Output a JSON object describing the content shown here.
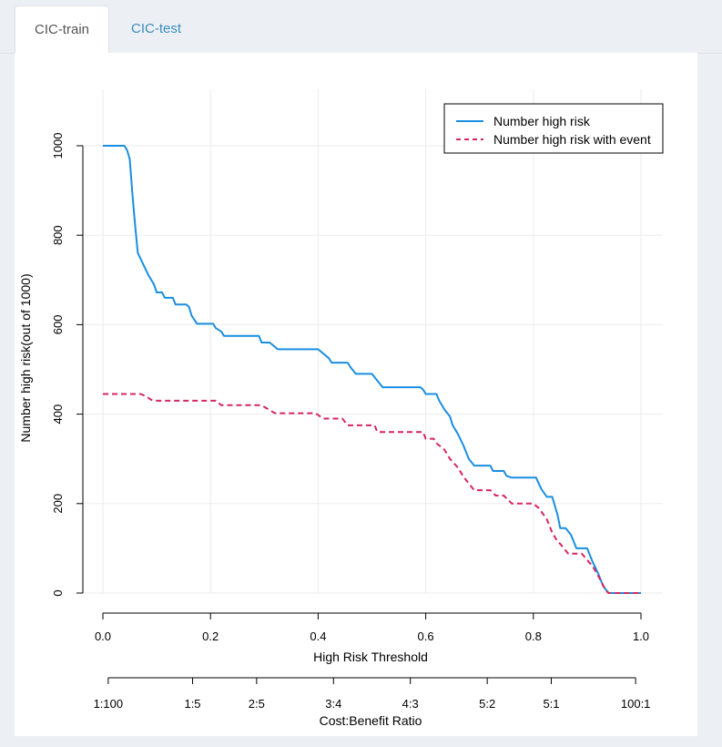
{
  "tabs": [
    {
      "label": "CIC-train",
      "active": true
    },
    {
      "label": "CIC-test",
      "active": false
    }
  ],
  "chart_data": {
    "type": "line",
    "xlabel": "High Risk Threshold",
    "ylabel": "Number high risk(out of 1000)",
    "xlim": [
      0,
      1
    ],
    "ylim": [
      0,
      1000
    ],
    "x_ticks": [
      "0.0",
      "0.2",
      "0.4",
      "0.6",
      "0.8",
      "1.0"
    ],
    "y_ticks": [
      "0",
      "200",
      "400",
      "600",
      "800",
      "1000"
    ],
    "cost_benefit": {
      "label": "Cost:Benefit Ratio",
      "ticks": [
        "1:100",
        "1:5",
        "2:5",
        "3:4",
        "4:3",
        "5:2",
        "5:1",
        "100:1"
      ],
      "thresholds": [
        0.0099,
        0.1667,
        0.2857,
        0.4286,
        0.5714,
        0.7143,
        0.8333,
        0.9901
      ]
    },
    "legend_position": "top-right",
    "grid": true,
    "series": [
      {
        "name": "Number high risk",
        "color": "#1a8ee1",
        "style": "solid",
        "points": [
          [
            0,
            1000
          ],
          [
            0.04,
            1000
          ],
          [
            0.045,
            990
          ],
          [
            0.05,
            970
          ],
          [
            0.055,
            890
          ],
          [
            0.06,
            820
          ],
          [
            0.065,
            760
          ],
          [
            0.075,
            735
          ],
          [
            0.085,
            710
          ],
          [
            0.095,
            690
          ],
          [
            0.1,
            672
          ],
          [
            0.11,
            672
          ],
          [
            0.115,
            660
          ],
          [
            0.13,
            660
          ],
          [
            0.135,
            645
          ],
          [
            0.155,
            645
          ],
          [
            0.16,
            640
          ],
          [
            0.165,
            620
          ],
          [
            0.175,
            602
          ],
          [
            0.2,
            602
          ],
          [
            0.205,
            602
          ],
          [
            0.21,
            592
          ],
          [
            0.22,
            585
          ],
          [
            0.225,
            575
          ],
          [
            0.29,
            575
          ],
          [
            0.295,
            560
          ],
          [
            0.31,
            560
          ],
          [
            0.315,
            555
          ],
          [
            0.325,
            545
          ],
          [
            0.395,
            545
          ],
          [
            0.4,
            545
          ],
          [
            0.42,
            525
          ],
          [
            0.425,
            515
          ],
          [
            0.455,
            515
          ],
          [
            0.46,
            505
          ],
          [
            0.47,
            490
          ],
          [
            0.5,
            490
          ],
          [
            0.51,
            475
          ],
          [
            0.52,
            460
          ],
          [
            0.59,
            460
          ],
          [
            0.595,
            455
          ],
          [
            0.6,
            445
          ],
          [
            0.62,
            445
          ],
          [
            0.625,
            430
          ],
          [
            0.635,
            410
          ],
          [
            0.645,
            395
          ],
          [
            0.65,
            375
          ],
          [
            0.66,
            355
          ],
          [
            0.67,
            330
          ],
          [
            0.68,
            300
          ],
          [
            0.69,
            285
          ],
          [
            0.72,
            285
          ],
          [
            0.725,
            273
          ],
          [
            0.745,
            273
          ],
          [
            0.75,
            262
          ],
          [
            0.76,
            258
          ],
          [
            0.805,
            258
          ],
          [
            0.815,
            232
          ],
          [
            0.825,
            215
          ],
          [
            0.835,
            215
          ],
          [
            0.845,
            175
          ],
          [
            0.85,
            145
          ],
          [
            0.86,
            145
          ],
          [
            0.87,
            130
          ],
          [
            0.88,
            100
          ],
          [
            0.9,
            100
          ],
          [
            0.91,
            70
          ],
          [
            0.92,
            45
          ],
          [
            0.93,
            15
          ],
          [
            0.94,
            0
          ],
          [
            0.995,
            0
          ],
          [
            1.0,
            0
          ]
        ]
      },
      {
        "name": "Number high risk with event",
        "color": "#d7265e",
        "style": "dashed",
        "points": [
          [
            0,
            445
          ],
          [
            0.07,
            445
          ],
          [
            0.08,
            440
          ],
          [
            0.09,
            432
          ],
          [
            0.1,
            430
          ],
          [
            0.2,
            430
          ],
          [
            0.21,
            430
          ],
          [
            0.22,
            420
          ],
          [
            0.29,
            420
          ],
          [
            0.3,
            416
          ],
          [
            0.32,
            402
          ],
          [
            0.395,
            402
          ],
          [
            0.41,
            390
          ],
          [
            0.445,
            390
          ],
          [
            0.455,
            375
          ],
          [
            0.505,
            375
          ],
          [
            0.51,
            360
          ],
          [
            0.595,
            360
          ],
          [
            0.6,
            345
          ],
          [
            0.615,
            345
          ],
          [
            0.62,
            335
          ],
          [
            0.635,
            320
          ],
          [
            0.645,
            300
          ],
          [
            0.66,
            280
          ],
          [
            0.67,
            260
          ],
          [
            0.68,
            245
          ],
          [
            0.69,
            230
          ],
          [
            0.705,
            230
          ],
          [
            0.72,
            230
          ],
          [
            0.73,
            218
          ],
          [
            0.745,
            218
          ],
          [
            0.76,
            200
          ],
          [
            0.79,
            200
          ],
          [
            0.8,
            200
          ],
          [
            0.81,
            190
          ],
          [
            0.825,
            165
          ],
          [
            0.835,
            135
          ],
          [
            0.845,
            115
          ],
          [
            0.85,
            110
          ],
          [
            0.86,
            95
          ],
          [
            0.865,
            88
          ],
          [
            0.89,
            88
          ],
          [
            0.91,
            60
          ],
          [
            0.92,
            40
          ],
          [
            0.935,
            5
          ],
          [
            0.94,
            0
          ],
          [
            1.0,
            0
          ]
        ]
      }
    ]
  }
}
